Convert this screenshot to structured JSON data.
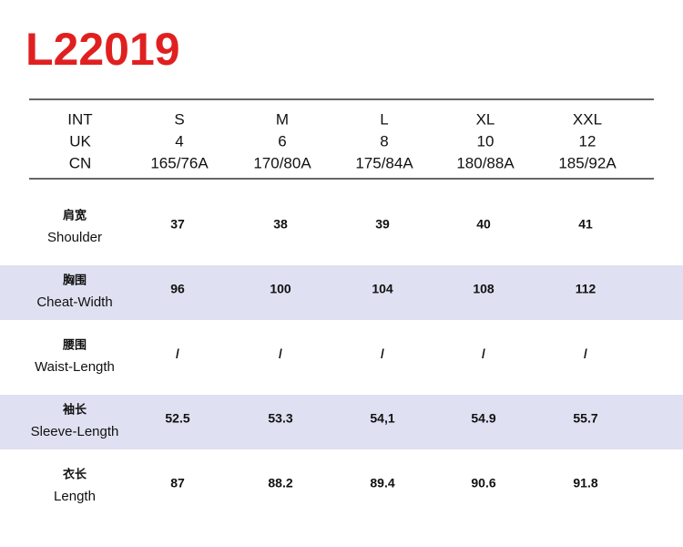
{
  "title": "L22019",
  "header": {
    "rows": [
      [
        "INT",
        "S",
        "M",
        "L",
        "XL",
        "XXL"
      ],
      [
        "UK",
        "4",
        "6",
        "8",
        "10",
        "12"
      ],
      [
        "CN",
        "165/76A",
        "170/80A",
        "175/84A",
        "180/88A",
        "185/92A"
      ]
    ]
  },
  "table": {
    "rows": [
      {
        "label_zh": "肩宽",
        "label_en": "Shoulder",
        "values": [
          "37",
          "38",
          "39",
          "40",
          "41"
        ]
      },
      {
        "label_zh": "胸围",
        "label_en": "Cheat-Width",
        "values": [
          "96",
          "100",
          "104",
          "108",
          "112"
        ]
      },
      {
        "label_zh": "腰围",
        "label_en": "Waist-Length",
        "values": [
          "/",
          "/",
          "/",
          "/",
          "/"
        ]
      },
      {
        "label_zh": "袖长",
        "label_en": "Sleeve-Length",
        "values": [
          "52.5",
          "53.3",
          "54,1",
          "54.9",
          "55.7"
        ]
      },
      {
        "label_zh": "衣长",
        "label_en": "Length",
        "values": [
          "87",
          "88.2",
          "89.4",
          "90.6",
          "91.8"
        ]
      }
    ]
  }
}
